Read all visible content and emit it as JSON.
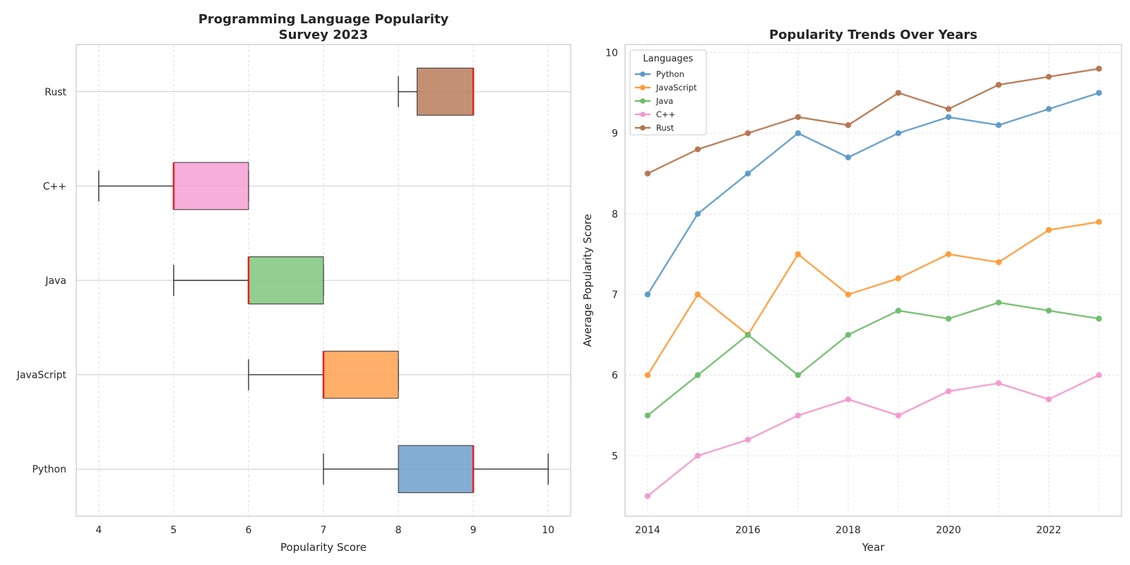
{
  "chart_data": [
    {
      "type": "box",
      "orientation": "horizontal",
      "title": "Programming Language Popularity\nSurvey 2023",
      "xlabel": "Popularity Score",
      "ylabel": "",
      "xlim": [
        3.7,
        10.3
      ],
      "xticks": [
        4,
        5,
        6,
        7,
        8,
        9,
        10
      ],
      "grid": true,
      "categories": [
        "Python",
        "JavaScript",
        "Java",
        "C++",
        "Rust"
      ],
      "boxes": [
        {
          "name": "Python",
          "min": 7,
          "q1": 8,
          "median": 9,
          "q3": 9,
          "max": 10,
          "color": "#6f9fcb"
        },
        {
          "name": "JavaScript",
          "min": 6,
          "q1": 7,
          "median": 7,
          "q3": 8,
          "max": 8,
          "color": "#ffa14f"
        },
        {
          "name": "Java",
          "min": 5,
          "q1": 6,
          "median": 6,
          "q3": 7,
          "max": 7,
          "color": "#7fc77e"
        },
        {
          "name": "C++",
          "min": 4,
          "q1": 5,
          "median": 5,
          "q3": 6,
          "max": 6,
          "color": "#f6a0d3"
        },
        {
          "name": "Rust",
          "min": 8,
          "q1": 8.25,
          "median": 9,
          "q3": 9,
          "max": 9,
          "color": "#b87c5b"
        }
      ],
      "median_color": "#e3211b"
    },
    {
      "type": "line",
      "title": "Popularity Trends Over Years",
      "xlabel": "Year",
      "ylabel": "Average Popularity Score",
      "x": [
        2014,
        2015,
        2016,
        2017,
        2018,
        2019,
        2020,
        2021,
        2022,
        2023
      ],
      "xlim": [
        2013.55,
        2023.45
      ],
      "ylim": [
        4.25,
        10.1
      ],
      "xticks": [
        2014,
        2016,
        2018,
        2020,
        2022
      ],
      "yticks": [
        5,
        6,
        7,
        8,
        9,
        10
      ],
      "grid": true,
      "legend": {
        "title": "Languages",
        "placement": "top-left"
      },
      "series": [
        {
          "name": "Python",
          "color": "#5b9ac8",
          "values": [
            7.0,
            8.0,
            8.5,
            9.0,
            8.7,
            9.0,
            9.2,
            9.1,
            9.3,
            9.5
          ]
        },
        {
          "name": "JavaScript",
          "color": "#ff9a37",
          "values": [
            6.0,
            7.0,
            6.5,
            7.5,
            7.0,
            7.2,
            7.5,
            7.4,
            7.8,
            7.9
          ]
        },
        {
          "name": "Java",
          "color": "#6dbd69",
          "values": [
            5.5,
            6.0,
            6.5,
            6.0,
            6.5,
            6.8,
            6.7,
            6.9,
            6.8,
            6.7
          ]
        },
        {
          "name": "C++",
          "color": "#f497cc",
          "values": [
            4.5,
            5.0,
            5.2,
            5.5,
            5.7,
            5.5,
            5.8,
            5.9,
            5.7,
            6.0
          ]
        },
        {
          "name": "Rust",
          "color": "#b5734f",
          "values": [
            8.5,
            8.8,
            9.0,
            9.2,
            9.1,
            9.5,
            9.3,
            9.6,
            9.7,
            9.8
          ]
        }
      ]
    }
  ]
}
